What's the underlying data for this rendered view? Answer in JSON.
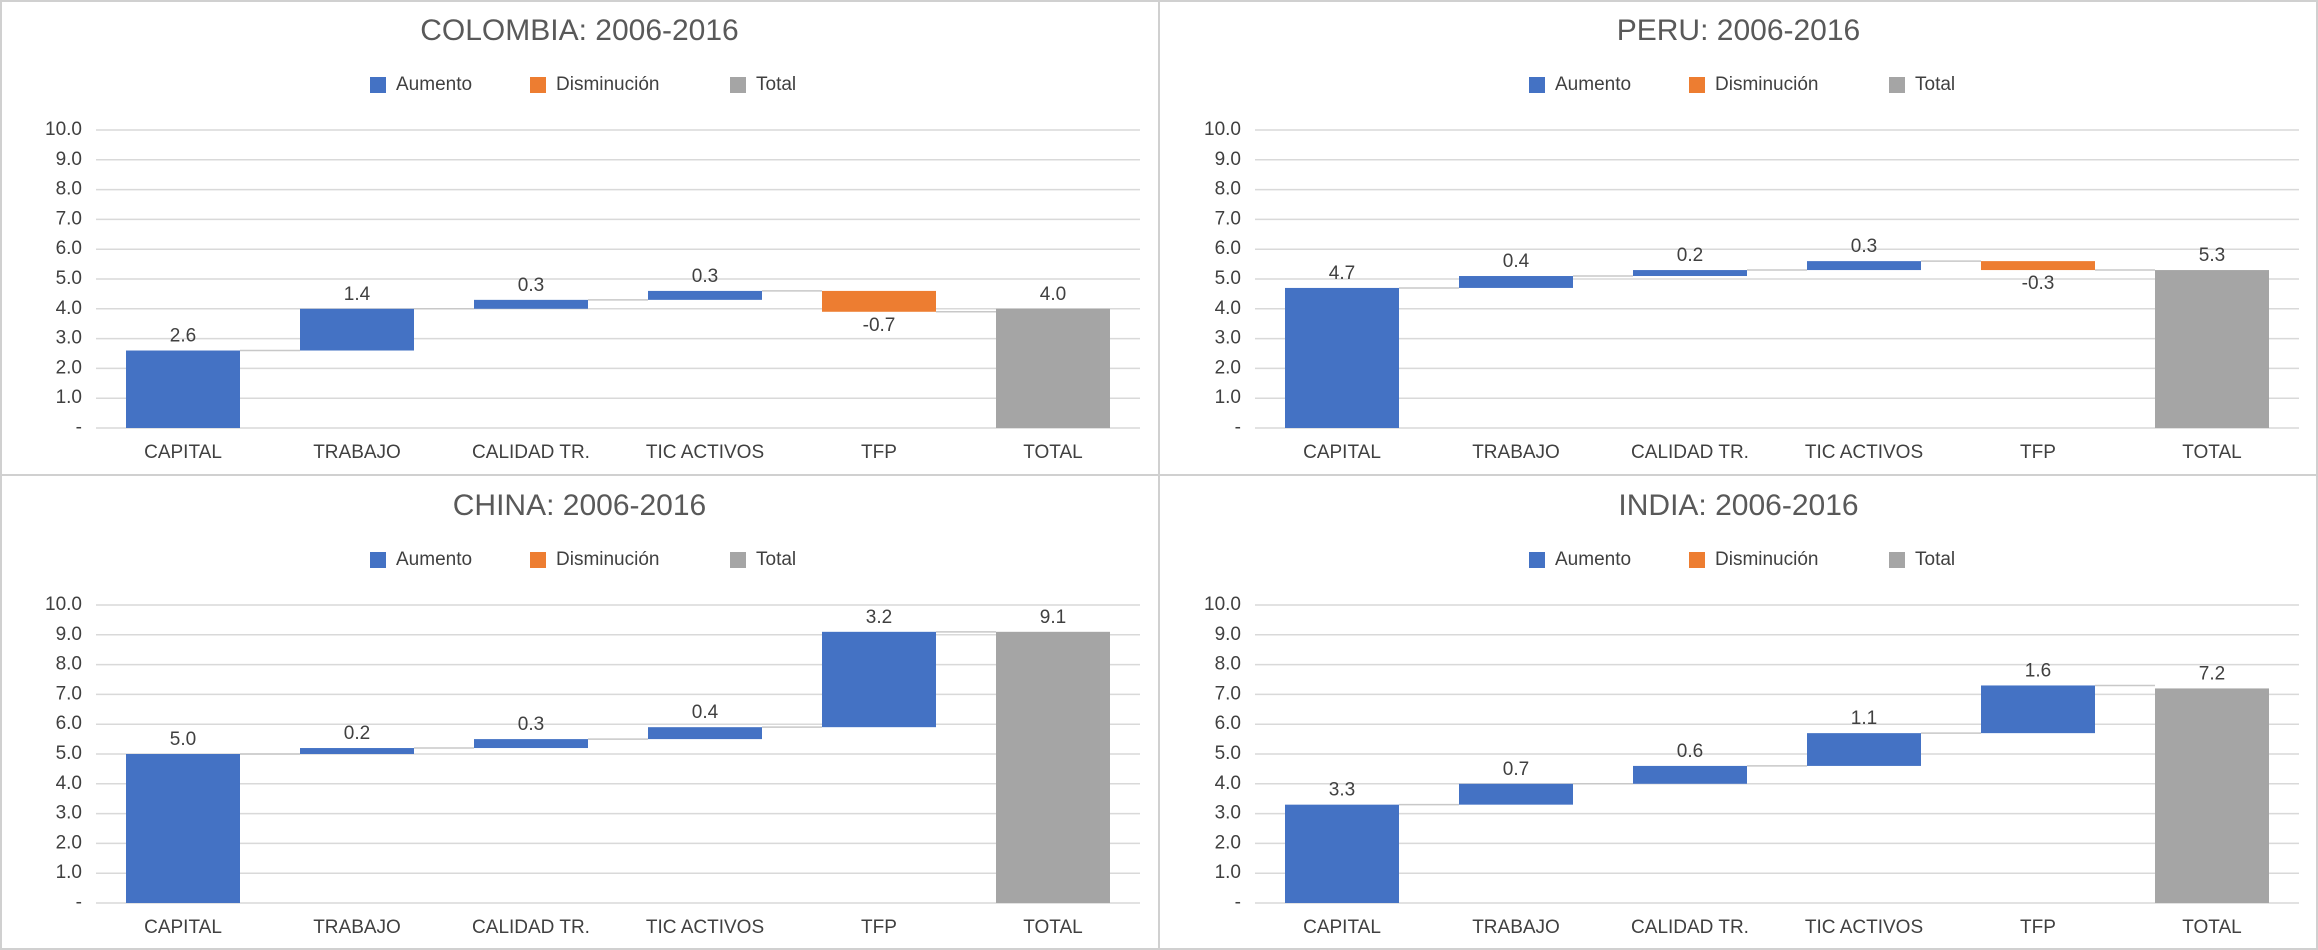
{
  "chart_data": [
    {
      "type": "waterfall",
      "title": "COLOMBIA: 2006-2016",
      "legend": [
        {
          "name": "Aumento",
          "color": "#4472c4"
        },
        {
          "name": "Disminución",
          "color": "#ed7d31"
        },
        {
          "name": "Total",
          "color": "#a5a5a5"
        }
      ],
      "categories": [
        "CAPITAL",
        "TRABAJO",
        "CALIDAD TR.",
        "TIC ACTIVOS",
        "TFP",
        "TOTAL"
      ],
      "values": [
        2.6,
        1.4,
        0.3,
        0.3,
        -0.7,
        4.0
      ],
      "value_labels": [
        "2.6",
        "1.4",
        "0.3",
        "0.3",
        "-0.7",
        "4.0"
      ],
      "total": [
        false,
        false,
        false,
        false,
        false,
        true
      ],
      "ylim": [
        0,
        10
      ],
      "yticks": [
        {
          "value": 0,
          "label": "-"
        },
        {
          "value": 1,
          "label": "1.0"
        },
        {
          "value": 2,
          "label": "2.0"
        },
        {
          "value": 3,
          "label": "3.0"
        },
        {
          "value": 4,
          "label": "4.0"
        },
        {
          "value": 5,
          "label": "5.0"
        },
        {
          "value": 6,
          "label": "6.0"
        },
        {
          "value": 7,
          "label": "7.0"
        },
        {
          "value": 8,
          "label": "8.0"
        },
        {
          "value": 9,
          "label": "9.0"
        },
        {
          "value": 10,
          "label": "10.0"
        }
      ],
      "grid": true
    },
    {
      "type": "waterfall",
      "title": "PERU: 2006-2016",
      "legend": [
        {
          "name": "Aumento",
          "color": "#4472c4"
        },
        {
          "name": "Disminución",
          "color": "#ed7d31"
        },
        {
          "name": "Total",
          "color": "#a5a5a5"
        }
      ],
      "categories": [
        "CAPITAL",
        "TRABAJO",
        "CALIDAD TR.",
        "TIC ACTIVOS",
        "TFP",
        "TOTAL"
      ],
      "values": [
        4.7,
        0.4,
        0.2,
        0.3,
        -0.3,
        5.3
      ],
      "value_labels": [
        "4.7",
        "0.4",
        "0.2",
        "0.3",
        "-0.3",
        "5.3"
      ],
      "total": [
        false,
        false,
        false,
        false,
        false,
        true
      ],
      "ylim": [
        0,
        10
      ],
      "yticks": [
        {
          "value": 0,
          "label": "-"
        },
        {
          "value": 1,
          "label": "1.0"
        },
        {
          "value": 2,
          "label": "2.0"
        },
        {
          "value": 3,
          "label": "3.0"
        },
        {
          "value": 4,
          "label": "4.0"
        },
        {
          "value": 5,
          "label": "5.0"
        },
        {
          "value": 6,
          "label": "6.0"
        },
        {
          "value": 7,
          "label": "7.0"
        },
        {
          "value": 8,
          "label": "8.0"
        },
        {
          "value": 9,
          "label": "9.0"
        },
        {
          "value": 10,
          "label": "10.0"
        }
      ],
      "grid": true
    },
    {
      "type": "waterfall",
      "title": "CHINA: 2006-2016",
      "legend": [
        {
          "name": "Aumento",
          "color": "#4472c4"
        },
        {
          "name": "Disminución",
          "color": "#ed7d31"
        },
        {
          "name": "Total",
          "color": "#a5a5a5"
        }
      ],
      "categories": [
        "CAPITAL",
        "TRABAJO",
        "CALIDAD TR.",
        "TIC ACTIVOS",
        "TFP",
        "TOTAL"
      ],
      "values": [
        5.0,
        0.2,
        0.3,
        0.4,
        3.2,
        9.1
      ],
      "value_labels": [
        "5.0",
        "0.2",
        "0.3",
        "0.4",
        "3.2",
        "9.1"
      ],
      "total": [
        false,
        false,
        false,
        false,
        false,
        true
      ],
      "ylim": [
        0,
        10
      ],
      "yticks": [
        {
          "value": 0,
          "label": "-"
        },
        {
          "value": 1,
          "label": "1.0"
        },
        {
          "value": 2,
          "label": "2.0"
        },
        {
          "value": 3,
          "label": "3.0"
        },
        {
          "value": 4,
          "label": "4.0"
        },
        {
          "value": 5,
          "label": "5.0"
        },
        {
          "value": 6,
          "label": "6.0"
        },
        {
          "value": 7,
          "label": "7.0"
        },
        {
          "value": 8,
          "label": "8.0"
        },
        {
          "value": 9,
          "label": "9.0"
        },
        {
          "value": 10,
          "label": "10.0"
        }
      ],
      "grid": true
    },
    {
      "type": "waterfall",
      "title": "INDIA: 2006-2016",
      "legend": [
        {
          "name": "Aumento",
          "color": "#4472c4"
        },
        {
          "name": "Disminución",
          "color": "#ed7d31"
        },
        {
          "name": "Total",
          "color": "#a5a5a5"
        }
      ],
      "categories": [
        "CAPITAL",
        "TRABAJO",
        "CALIDAD TR.",
        "TIC ACTIVOS",
        "TFP",
        "TOTAL"
      ],
      "values": [
        3.3,
        0.7,
        0.6,
        1.1,
        1.6,
        7.2
      ],
      "value_labels": [
        "3.3",
        "0.7",
        "0.6",
        "1.1",
        "1.6",
        "7.2"
      ],
      "total": [
        false,
        false,
        false,
        false,
        false,
        true
      ],
      "ylim": [
        0,
        10
      ],
      "yticks": [
        {
          "value": 0,
          "label": "-"
        },
        {
          "value": 1,
          "label": "1.0"
        },
        {
          "value": 2,
          "label": "2.0"
        },
        {
          "value": 3,
          "label": "3.0"
        },
        {
          "value": 4,
          "label": "4.0"
        },
        {
          "value": 5,
          "label": "5.0"
        },
        {
          "value": 6,
          "label": "6.0"
        },
        {
          "value": 7,
          "label": "7.0"
        },
        {
          "value": 8,
          "label": "8.0"
        },
        {
          "value": 9,
          "label": "9.0"
        },
        {
          "value": 10,
          "label": "10.0"
        }
      ],
      "grid": true
    }
  ]
}
